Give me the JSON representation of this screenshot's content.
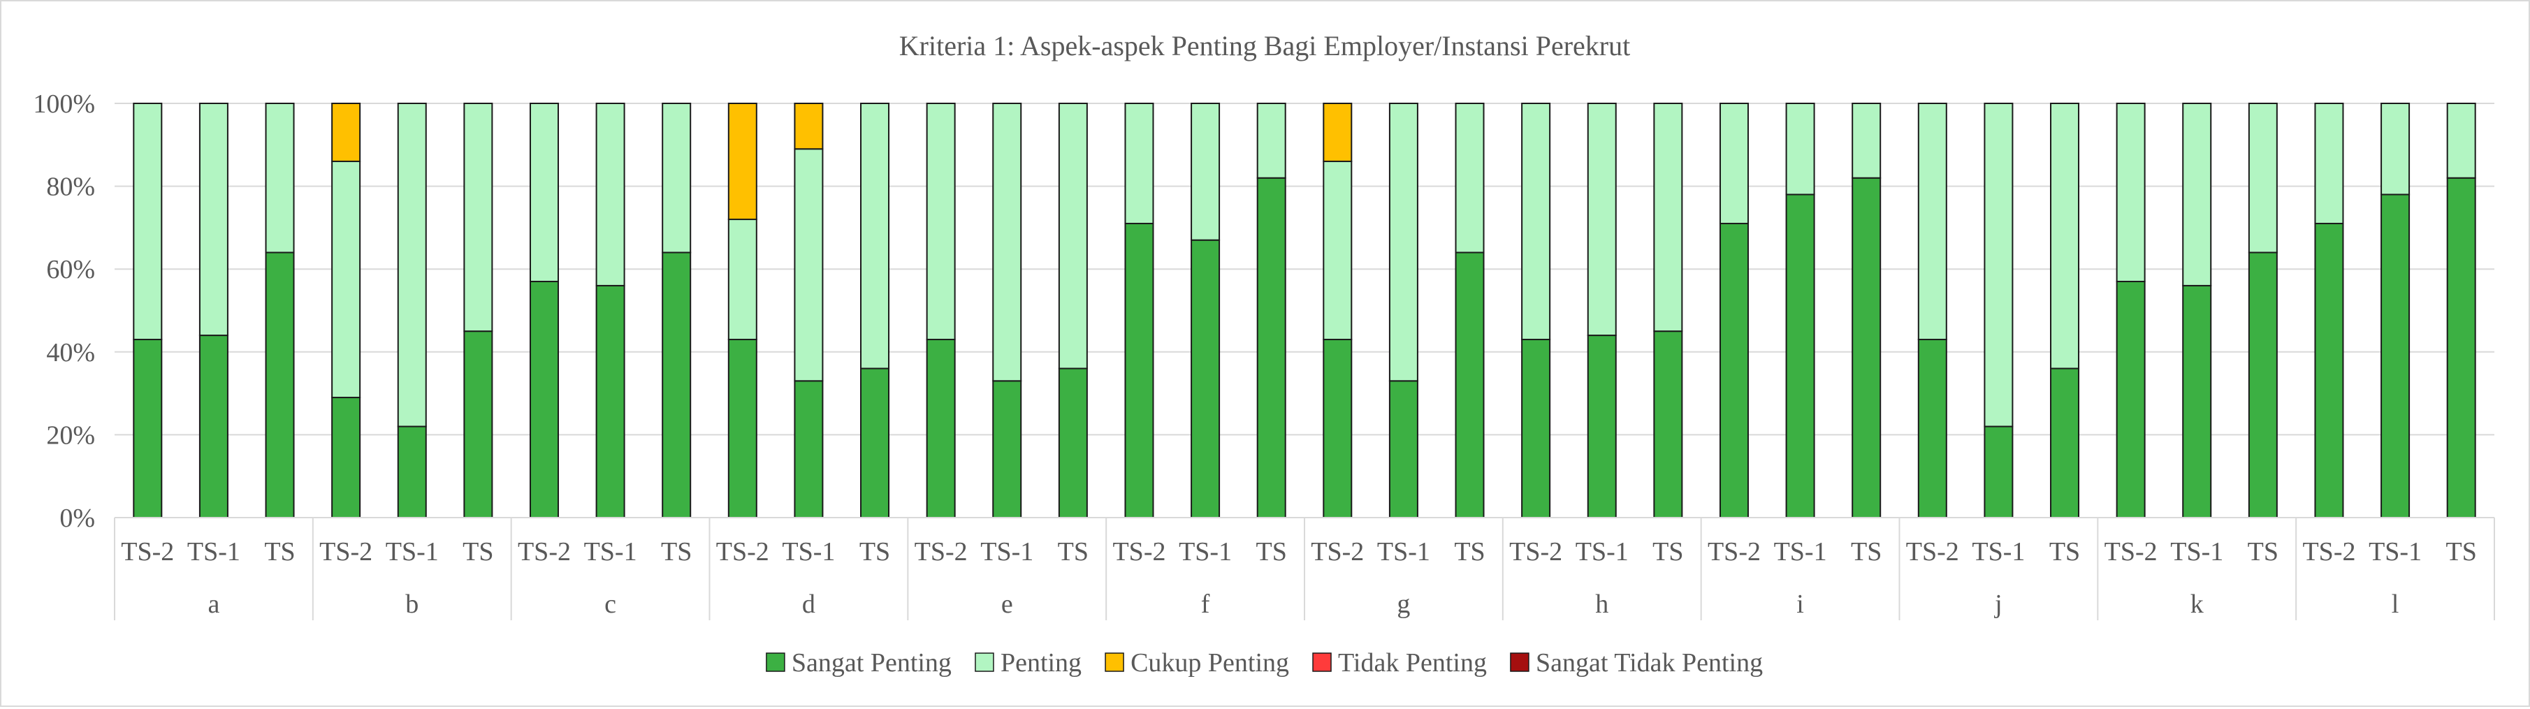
{
  "chart_data": {
    "type": "bar",
    "stacked": true,
    "percent_stacked": true,
    "title": "Kriteria 1: Aspek-aspek Penting Bagi Employer/Instansi Perekrut",
    "xlabel": "",
    "ylabel": "",
    "ylim": [
      0,
      100
    ],
    "y_ticks": [
      "0%",
      "20%",
      "40%",
      "60%",
      "80%",
      "100%"
    ],
    "y_tick_values": [
      0,
      20,
      40,
      60,
      80,
      100
    ],
    "grid": true,
    "legend_position": "bottom",
    "groups": [
      "a",
      "b",
      "c",
      "d",
      "e",
      "f",
      "g",
      "h",
      "i",
      "j",
      "k",
      "l"
    ],
    "subcategories": [
      "TS-2",
      "TS-1",
      "TS"
    ],
    "series": [
      {
        "name": "Sangat Penting",
        "color": "#3cb043",
        "values": [
          43,
          44,
          64,
          29,
          22,
          45,
          57,
          56,
          64,
          43,
          33,
          36,
          43,
          33,
          36,
          71,
          67,
          82,
          43,
          33,
          64,
          43,
          44,
          45,
          71,
          78,
          82,
          43,
          22,
          36,
          57,
          56,
          64,
          71,
          78,
          82
        ]
      },
      {
        "name": "Penting",
        "color": "#b2f5c2",
        "values": [
          57,
          56,
          36,
          57,
          78,
          55,
          43,
          44,
          36,
          29,
          56,
          64,
          57,
          67,
          64,
          29,
          33,
          18,
          43,
          67,
          36,
          57,
          56,
          55,
          29,
          22,
          18,
          57,
          78,
          64,
          43,
          44,
          36,
          29,
          22,
          18
        ]
      },
      {
        "name": "Cukup Penting",
        "color": "#ffc000",
        "values": [
          0,
          0,
          0,
          14,
          0,
          0,
          0,
          0,
          0,
          28,
          11,
          0,
          0,
          0,
          0,
          0,
          0,
          0,
          14,
          0,
          0,
          0,
          0,
          0,
          0,
          0,
          0,
          0,
          0,
          0,
          0,
          0,
          0,
          0,
          0,
          0
        ]
      },
      {
        "name": "Tidak Penting",
        "color": "#ff3b3b",
        "values": [
          0,
          0,
          0,
          0,
          0,
          0,
          0,
          0,
          0,
          0,
          0,
          0,
          0,
          0,
          0,
          0,
          0,
          0,
          0,
          0,
          0,
          0,
          0,
          0,
          0,
          0,
          0,
          0,
          0,
          0,
          0,
          0,
          0,
          0,
          0,
          0
        ]
      },
      {
        "name": "Sangat Tidak Penting",
        "color": "#a50f0f",
        "values": [
          0,
          0,
          0,
          0,
          0,
          0,
          0,
          0,
          0,
          0,
          0,
          0,
          0,
          0,
          0,
          0,
          0,
          0,
          0,
          0,
          0,
          0,
          0,
          0,
          0,
          0,
          0,
          0,
          0,
          0,
          0,
          0,
          0,
          0,
          0,
          0
        ]
      }
    ]
  }
}
